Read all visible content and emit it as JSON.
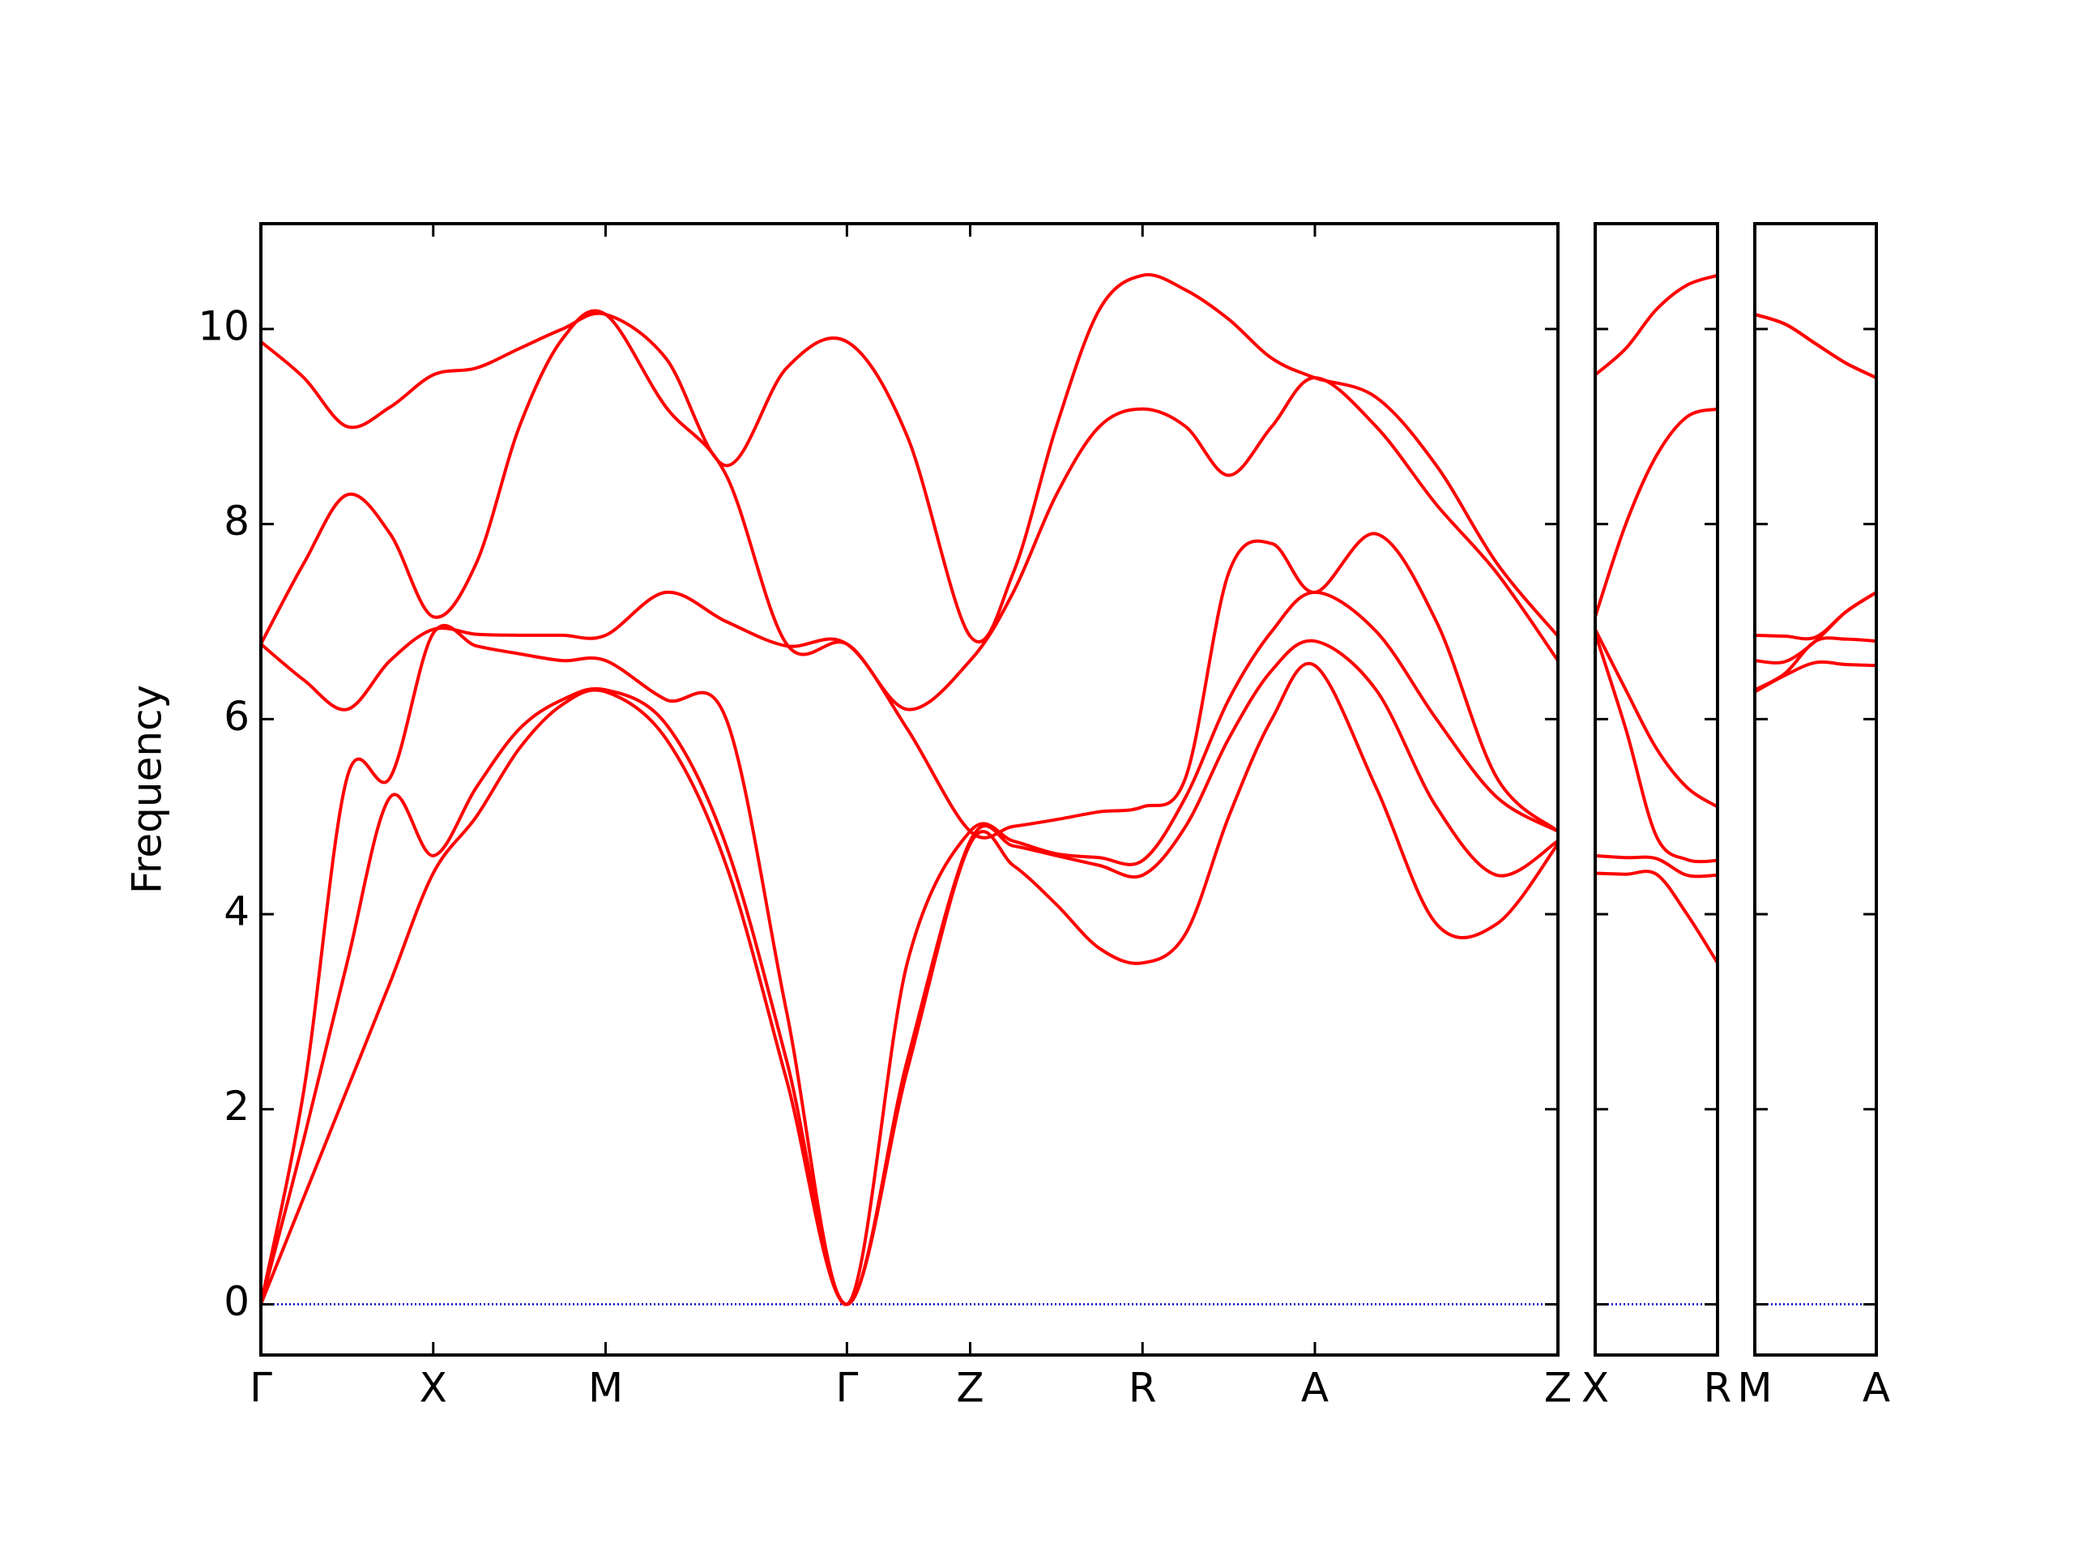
{
  "chart_data": [
    {
      "type": "line",
      "ylabel": "Frequency",
      "color": "#ff0000",
      "ytick_labels": true,
      "zero_line": {
        "value": 0,
        "color": "#0000cc"
      },
      "xlim": [
        0,
        7.525
      ],
      "ylim": [
        -0.52,
        11.08
      ],
      "yticks": [
        0,
        2,
        4,
        6,
        8,
        10
      ],
      "xticks": [
        {
          "value": 0,
          "label": "Γ"
        },
        {
          "value": 1,
          "label": "X"
        },
        {
          "value": 2,
          "label": "M"
        },
        {
          "value": 3.4,
          "label": "Γ"
        },
        {
          "value": 4.115,
          "label": "Z"
        },
        {
          "value": 5.115,
          "label": "R"
        },
        {
          "value": 6.115,
          "label": "A"
        },
        {
          "value": 7.525,
          "label": "Z"
        }
      ],
      "x": [
        0,
        0.25,
        0.5,
        0.75,
        1,
        1.25,
        1.5,
        1.75,
        2,
        2.35,
        2.7,
        3.05,
        3.4,
        3.75,
        4.115,
        4.365,
        4.615,
        4.865,
        5.115,
        5.365,
        5.615,
        5.865,
        6.115,
        6.47,
        6.82,
        7.17,
        7.525
      ],
      "series": [
        {
          "values": [
            0,
            1.1,
            2.2,
            3.3,
            4.42,
            5.0,
            5.7,
            6.15,
            6.28,
            5.8,
            4.5,
            2.3,
            0,
            2.4,
            4.72,
            4.5,
            4.1,
            3.65,
            3.5,
            3.8,
            5.0,
            6.0,
            6.55,
            5.3,
            3.9,
            3.9,
            4.72
          ]
        },
        {
          "values": [
            0,
            1.7,
            3.5,
            5.2,
            4.6,
            5.3,
            5.9,
            6.2,
            6.3,
            5.95,
            4.7,
            2.5,
            0,
            2.5,
            4.75,
            4.7,
            4.6,
            4.5,
            4.4,
            4.9,
            5.8,
            6.5,
            6.8,
            6.3,
            5.1,
            4.4,
            4.75
          ]
        },
        {
          "values": [
            0,
            2.2,
            5.4,
            5.4,
            6.88,
            6.75,
            6.67,
            6.6,
            6.6,
            6.2,
            6.0,
            3.0,
            0,
            3.5,
            4.85,
            4.75,
            4.62,
            4.58,
            4.55,
            5.2,
            6.2,
            6.9,
            7.3,
            6.9,
            6.0,
            5.2,
            4.85
          ]
        },
        {
          "values": [
            6.77,
            6.4,
            6.1,
            6.6,
            6.92,
            6.87,
            6.86,
            6.86,
            6.86,
            7.3,
            7.0,
            6.75,
            6.77,
            5.9,
            4.85,
            4.9,
            4.97,
            5.05,
            5.1,
            5.4,
            7.5,
            7.8,
            7.3,
            7.9,
            7.0,
            5.4,
            4.85
          ]
        },
        {
          "values": [
            6.77,
            7.6,
            8.3,
            7.9,
            7.05,
            7.6,
            9.0,
            9.9,
            10.15,
            9.2,
            8.5,
            6.77,
            6.77,
            6.1,
            6.6,
            7.3,
            8.3,
            9.0,
            9.18,
            9.0,
            8.5,
            9.0,
            9.5,
            9.0,
            8.2,
            7.5,
            6.6
          ]
        },
        {
          "values": [
            9.87,
            9.5,
            9.0,
            9.2,
            9.53,
            9.6,
            9.8,
            10.0,
            10.15,
            9.7,
            8.6,
            9.6,
            9.87,
            8.9,
            6.85,
            7.5,
            9.0,
            10.2,
            10.55,
            10.4,
            10.1,
            9.7,
            9.5,
            9.3,
            8.6,
            7.6,
            6.85
          ]
        }
      ]
    },
    {
      "type": "line",
      "color": "#ff0000",
      "ytick_labels": false,
      "zero_line": {
        "value": 0,
        "color": "#0000cc"
      },
      "xlim": [
        0,
        0.71
      ],
      "ylim": [
        -0.52,
        11.08
      ],
      "yticks": [
        0,
        2,
        4,
        6,
        8,
        10
      ],
      "xticks": [
        {
          "value": 0,
          "label": "X"
        },
        {
          "value": 0.71,
          "label": "R"
        }
      ],
      "x": [
        0,
        0.1775,
        0.355,
        0.5325,
        0.71
      ],
      "series": [
        {
          "values": [
            4.42,
            4.41,
            4.41,
            4.0,
            3.5
          ]
        },
        {
          "values": [
            4.6,
            4.58,
            4.57,
            4.4,
            4.4
          ]
        },
        {
          "values": [
            6.88,
            5.9,
            4.8,
            4.56,
            4.55
          ]
        },
        {
          "values": [
            6.92,
            6.3,
            5.7,
            5.3,
            5.1
          ]
        },
        {
          "values": [
            7.05,
            8.0,
            8.7,
            9.1,
            9.18
          ]
        },
        {
          "values": [
            9.53,
            9.8,
            10.2,
            10.45,
            10.55
          ]
        }
      ]
    },
    {
      "type": "line",
      "color": "#ff0000",
      "ytick_labels": false,
      "zero_line": {
        "value": 0,
        "color": "#0000cc"
      },
      "xlim": [
        0,
        0.7
      ],
      "ylim": [
        -0.52,
        11.08
      ],
      "yticks": [
        0,
        2,
        4,
        6,
        8,
        10
      ],
      "xticks": [
        {
          "value": 0,
          "label": "M"
        },
        {
          "value": 0.7,
          "label": "A"
        }
      ],
      "x": [
        0,
        0.175,
        0.35,
        0.525,
        0.7
      ],
      "series": [
        {
          "values": [
            6.28,
            6.45,
            6.58,
            6.56,
            6.55
          ]
        },
        {
          "values": [
            6.3,
            6.47,
            6.8,
            6.82,
            6.8
          ]
        },
        {
          "values": [
            6.6,
            6.59,
            6.8,
            7.1,
            7.3
          ]
        },
        {
          "values": [
            6.86,
            6.85,
            6.84,
            7.1,
            7.3
          ]
        },
        {
          "values": [
            10.15,
            10.05,
            9.85,
            9.65,
            9.5
          ]
        },
        {
          "values": [
            10.15,
            10.05,
            9.85,
            9.65,
            9.5
          ]
        }
      ]
    }
  ]
}
